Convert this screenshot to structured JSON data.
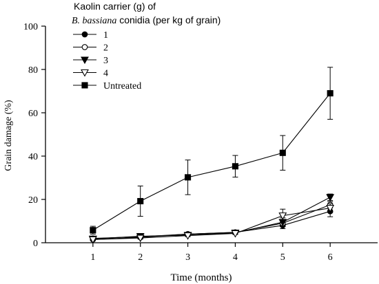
{
  "chart_data": {
    "type": "line",
    "xlabel": "Time (months)",
    "ylabel": "Grain damage (%)",
    "x": [
      1,
      2,
      3,
      4,
      5,
      6
    ],
    "xlim": [
      0,
      7
    ],
    "ylim": [
      0,
      100
    ],
    "xticks": [
      1,
      2,
      3,
      4,
      5,
      6
    ],
    "yticks": [
      0,
      20,
      40,
      60,
      80,
      100
    ],
    "legend": {
      "title_line1": "Kaolin carrier (g) of",
      "title_line2_italic": "B. bassiana",
      "title_line2_rest": " conidia (per kg of grain)",
      "placement": "top-left"
    },
    "grid": false,
    "series": [
      {
        "name": "1",
        "marker": "circle-filled",
        "values": [
          2,
          2.8,
          4,
          4.8,
          8,
          14.5
        ],
        "errors": [
          0.6,
          0.6,
          0.6,
          0.6,
          1.5,
          2.5
        ]
      },
      {
        "name": "2",
        "marker": "circle-open",
        "values": [
          1.5,
          2.5,
          4,
          4.8,
          9,
          17.5
        ],
        "errors": [
          0.5,
          0.5,
          0.5,
          0.5,
          1.5,
          1.5
        ]
      },
      {
        "name": "3",
        "marker": "triangle-down-filled",
        "values": [
          1.8,
          3,
          3.5,
          4.6,
          9.5,
          21
        ],
        "errors": [
          0.5,
          1.2,
          0.6,
          0.5,
          2,
          1.5
        ]
      },
      {
        "name": "4",
        "marker": "triangle-down-open",
        "values": [
          1.5,
          2.2,
          3.3,
          4.3,
          12.5,
          16
        ],
        "errors": [
          0.5,
          0.5,
          0.5,
          0.5,
          3,
          2
        ]
      },
      {
        "name": "Untreated",
        "marker": "square-filled",
        "values": [
          5.8,
          19.2,
          30.2,
          35.3,
          41.5,
          69
        ],
        "errors": [
          1.8,
          7,
          8,
          5,
          8,
          12
        ]
      }
    ]
  }
}
